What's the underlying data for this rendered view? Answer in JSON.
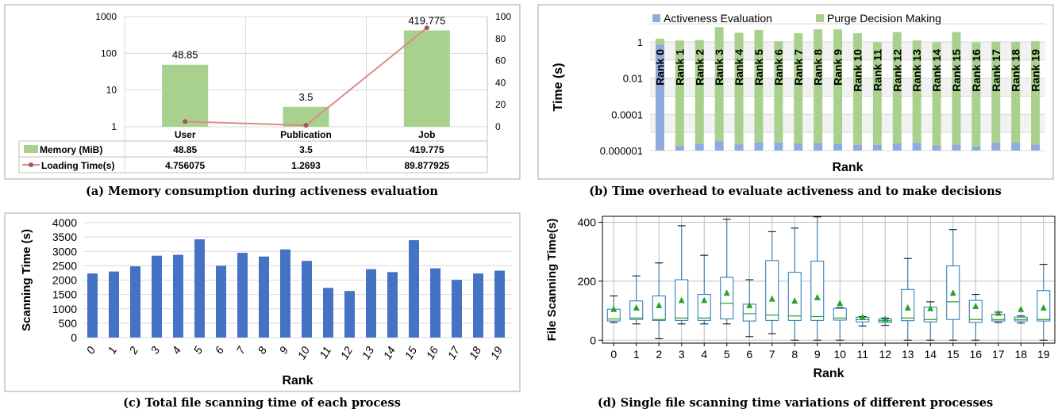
{
  "chart_data": [
    {
      "id": "a",
      "type": "bar",
      "caption": "(a) Memory consumption during activeness evaluation",
      "categories": [
        "User",
        "Publication",
        "Job"
      ],
      "y_scale": "log",
      "ylim": [
        1,
        1000
      ],
      "y_ticks": [
        "1",
        "10",
        "100",
        "1000"
      ],
      "y2lim": [
        0,
        100
      ],
      "y2_ticks": [
        "0",
        "20",
        "40",
        "60",
        "80",
        "100"
      ],
      "grid": true,
      "series": [
        {
          "name": "Memory (MiB)",
          "kind": "bar",
          "color": "#a9d18e",
          "values": [
            48.85,
            3.5,
            419.775
          ],
          "value_labels": [
            "48.85",
            "3.5",
            "419.775"
          ]
        },
        {
          "name": "Loading Time(s)",
          "kind": "line",
          "axis": "secondary",
          "color": "#d98c87",
          "marker_color": "#9c5a55",
          "values": [
            4.756075,
            1.2693,
            89.877925
          ],
          "value_labels": [
            "4.756075",
            "1.2693",
            "89.877925"
          ]
        }
      ]
    },
    {
      "id": "b",
      "type": "bar",
      "stacked": true,
      "caption": "(b) Time overhead to evaluate activeness and to make decisions",
      "xlabel": "Rank",
      "ylabel": "Time (s)",
      "y_scale": "log",
      "ylim": [
        1e-06,
        10
      ],
      "y_ticks": [
        "0.000001",
        "0.0001",
        "0.01",
        "1"
      ],
      "legend_position": "top",
      "grid": true,
      "categories": [
        "Rank 0",
        "Rank 1",
        "Rank 2",
        "Rank 3",
        "Rank 4",
        "Rank 5",
        "Rank 6",
        "Rank 7",
        "Rank 8",
        "Rank 9",
        "Rank 10",
        "Rank 11",
        "Rank 12",
        "Rank 13",
        "Rank 14",
        "Rank 15",
        "Rank 16",
        "Rank 17",
        "Rank 18",
        "Rank 19"
      ],
      "series": [
        {
          "name": "Activeness Evaluation",
          "color": "#8faadc",
          "values": [
            0.7,
            1.8e-06,
            2.4e-06,
            3.2e-06,
            2.2e-06,
            2.8e-06,
            2.8e-06,
            2.5e-06,
            2.6e-06,
            2.4e-06,
            2.1e-06,
            2.1e-06,
            2.5e-06,
            2.6e-06,
            1.9e-06,
            2.1e-06,
            1.7e-06,
            2.7e-06,
            2.6e-06,
            2.2e-06
          ]
        },
        {
          "name": "Purge Decision Making",
          "color": "#a9d18e",
          "totals": [
            1.5,
            1.2,
            1.25,
            6.5,
            3.2,
            4.5,
            1.1,
            3.0,
            5.0,
            5.0,
            3.0,
            0.95,
            3.5,
            1.2,
            0.95,
            3.5,
            0.95,
            1.0,
            1.0,
            1.1
          ]
        }
      ]
    },
    {
      "id": "c",
      "type": "bar",
      "caption": "(c) Total file scanning time of each process",
      "xlabel": "Rank",
      "ylabel": "Scanning Time (s)",
      "ylim": [
        0,
        4000
      ],
      "y_ticks": [
        "0",
        "500",
        "1000",
        "1500",
        "2000",
        "2500",
        "3000",
        "3500",
        "4000"
      ],
      "grid": true,
      "categories": [
        "0",
        "1",
        "2",
        "3",
        "4",
        "5",
        "6",
        "7",
        "8",
        "9",
        "10",
        "11",
        "12",
        "13",
        "14",
        "15",
        "16",
        "17",
        "18",
        "19"
      ],
      "series": [
        {
          "color": "#4472c4",
          "values": [
            2230,
            2300,
            2480,
            2850,
            2880,
            3420,
            2500,
            2950,
            2820,
            3070,
            2670,
            1730,
            1620,
            2380,
            2280,
            3390,
            2410,
            2010,
            2230,
            2330
          ]
        }
      ]
    },
    {
      "id": "d",
      "type": "box",
      "caption": "(d) Single file scanning time variations of different processes",
      "xlabel": "Rank",
      "ylabel": "File Scanning Time(s)",
      "ylim": [
        -10,
        420
      ],
      "y_ticks": [
        "0",
        "200",
        "400"
      ],
      "grid": true,
      "categories": [
        "0",
        "1",
        "2",
        "3",
        "4",
        "5",
        "6",
        "7",
        "8",
        "9",
        "10",
        "11",
        "12",
        "13",
        "14",
        "15",
        "16",
        "17",
        "18",
        "19"
      ],
      "box_color": "#1f77b4",
      "median_color": "#2ca02c",
      "mean_color": "#2ca02c",
      "boxes": [
        {
          "min": 60,
          "q1": 65,
          "median": 72,
          "q3": 105,
          "max": 150,
          "mean": 105
        },
        {
          "min": 55,
          "q1": 70,
          "median": 75,
          "q3": 133,
          "max": 218,
          "mean": 110
        },
        {
          "min": 5,
          "q1": 67,
          "median": 70,
          "q3": 150,
          "max": 262,
          "mean": 118
        },
        {
          "min": 55,
          "q1": 67,
          "median": 75,
          "q3": 205,
          "max": 388,
          "mean": 135
        },
        {
          "min": 55,
          "q1": 67,
          "median": 75,
          "q3": 155,
          "max": 288,
          "mean": 135
        },
        {
          "min": 55,
          "q1": 72,
          "median": 125,
          "q3": 213,
          "max": 410,
          "mean": 160
        },
        {
          "min": 12,
          "q1": 65,
          "median": 90,
          "q3": 122,
          "max": 205,
          "mean": 118
        },
        {
          "min": 22,
          "q1": 67,
          "median": 85,
          "q3": 270,
          "max": 368,
          "mean": 140
        },
        {
          "min": 0,
          "q1": 67,
          "median": 82,
          "q3": 230,
          "max": 380,
          "mean": 133
        },
        {
          "min": 0,
          "q1": 67,
          "median": 80,
          "q3": 268,
          "max": 418,
          "mean": 145
        },
        {
          "min": 0,
          "q1": 68,
          "median": 75,
          "q3": 108,
          "max": 110,
          "mean": 125
        },
        {
          "min": 48,
          "q1": 62,
          "median": 70,
          "q3": 78,
          "max": 80,
          "mean": 78
        },
        {
          "min": 50,
          "q1": 60,
          "median": 66,
          "q3": 72,
          "max": 75,
          "mean": 72
        },
        {
          "min": 0,
          "q1": 66,
          "median": 75,
          "q3": 172,
          "max": 277,
          "mean": 110
        },
        {
          "min": 0,
          "q1": 62,
          "median": 70,
          "q3": 112,
          "max": 130,
          "mean": 108
        },
        {
          "min": 0,
          "q1": 70,
          "median": 130,
          "q3": 252,
          "max": 375,
          "mean": 160
        },
        {
          "min": 0,
          "q1": 60,
          "median": 70,
          "q3": 135,
          "max": 155,
          "mean": 115
        },
        {
          "min": 60,
          "q1": 65,
          "median": 70,
          "q3": 88,
          "max": 95,
          "mean": 92
        },
        {
          "min": 58,
          "q1": 65,
          "median": 70,
          "q3": 78,
          "max": 82,
          "mean": 105
        },
        {
          "min": 0,
          "q1": 65,
          "median": 70,
          "q3": 168,
          "max": 257,
          "mean": 110
        }
      ]
    }
  ]
}
